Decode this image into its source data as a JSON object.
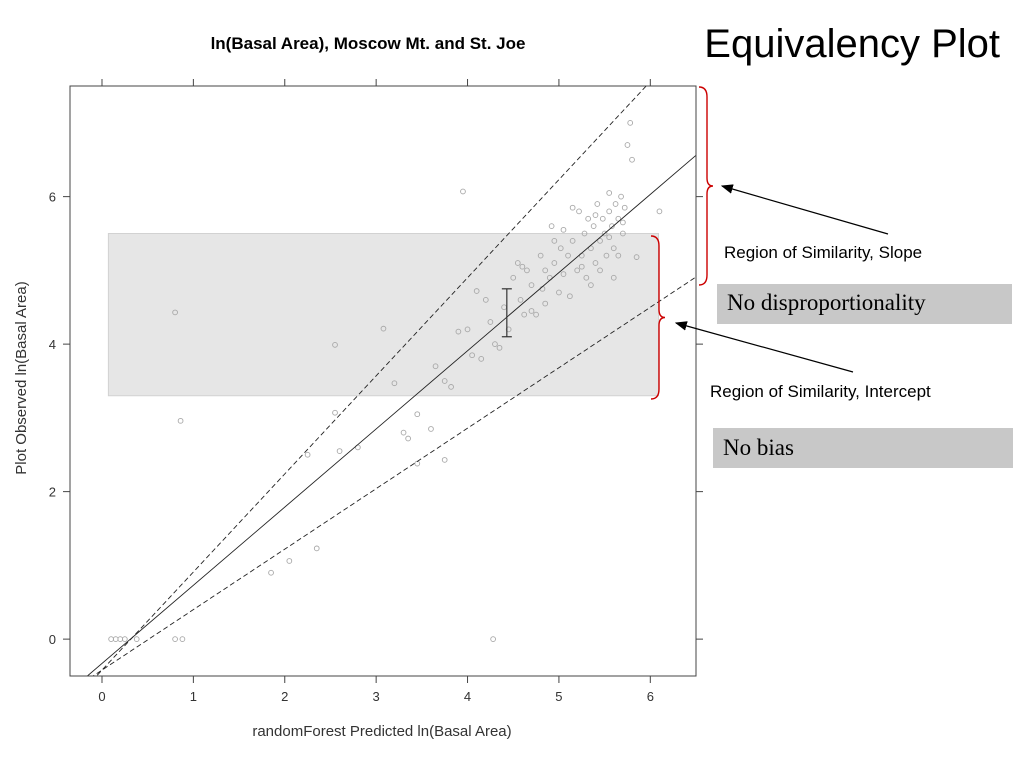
{
  "slide": {
    "title": "Equivalency Plot"
  },
  "annotations": {
    "slope_label": "Region of Similarity, Slope",
    "slope_result": "No disproportionality",
    "intercept_label": "Region of Similarity, Intercept",
    "intercept_result": "No bias",
    "brace_color": "#cc0000",
    "result_box_color": "#c8c8c8"
  },
  "chart_data": {
    "type": "scatter",
    "title": "ln(Basal Area), Moscow Mt. and St. Joe",
    "xlabel": "randomForest Predicted ln(Basal Area)",
    "ylabel": "Plot Observed ln(Basal Area)",
    "xlim": [
      -0.35,
      6.5
    ],
    "ylim": [
      -0.5,
      7.5
    ],
    "xticks": [
      0,
      1,
      2,
      3,
      4,
      5,
      6
    ],
    "yticks": [
      0,
      2,
      4,
      6
    ],
    "grid": false,
    "region_of_similarity": {
      "x": [
        0.07,
        6.09
      ],
      "y": [
        3.3,
        5.5
      ],
      "color": "#e6e6e6"
    },
    "error_bar": {
      "x": 4.43,
      "y_low": 4.1,
      "y_high": 4.75,
      "y_mid": 4.42
    },
    "lines": [
      {
        "name": "fit",
        "style": "solid",
        "intercept": -0.33,
        "slope": 1.06
      },
      {
        "name": "slope-upper",
        "style": "dashed",
        "intercept": -0.42,
        "slope": 1.33
      },
      {
        "name": "slope-lower",
        "style": "dashed",
        "intercept": -0.42,
        "slope": 0.82
      }
    ],
    "points": [
      [
        0.1,
        0
      ],
      [
        0.15,
        0
      ],
      [
        0.2,
        0
      ],
      [
        0.25,
        0
      ],
      [
        0.38,
        0
      ],
      [
        0.8,
        0
      ],
      [
        0.88,
        0
      ],
      [
        4.28,
        0
      ],
      [
        0.8,
        4.43
      ],
      [
        0.86,
        2.96
      ],
      [
        1.85,
        0.9
      ],
      [
        2.05,
        1.06
      ],
      [
        2.35,
        1.23
      ],
      [
        2.25,
        2.5
      ],
      [
        2.6,
        2.55
      ],
      [
        2.8,
        2.6
      ],
      [
        2.55,
        3.07
      ],
      [
        2.55,
        3.99
      ],
      [
        3.08,
        4.21
      ],
      [
        3.2,
        3.47
      ],
      [
        3.3,
        2.8
      ],
      [
        3.35,
        2.72
      ],
      [
        3.45,
        3.05
      ],
      [
        3.45,
        2.38
      ],
      [
        3.6,
        2.85
      ],
      [
        3.65,
        3.7
      ],
      [
        3.75,
        3.5
      ],
      [
        3.82,
        3.42
      ],
      [
        3.75,
        2.43
      ],
      [
        3.9,
        4.17
      ],
      [
        3.95,
        6.07
      ],
      [
        4.0,
        4.2
      ],
      [
        4.05,
        3.85
      ],
      [
        4.15,
        3.8
      ],
      [
        4.1,
        4.72
      ],
      [
        4.2,
        4.6
      ],
      [
        4.25,
        4.3
      ],
      [
        4.3,
        4.0
      ],
      [
        4.35,
        3.95
      ],
      [
        4.4,
        4.5
      ],
      [
        4.45,
        4.2
      ],
      [
        4.5,
        4.9
      ],
      [
        4.55,
        5.1
      ],
      [
        4.58,
        4.6
      ],
      [
        4.62,
        4.4
      ],
      [
        4.65,
        5.0
      ],
      [
        4.7,
        4.8
      ],
      [
        4.75,
        4.4
      ],
      [
        4.8,
        5.2
      ],
      [
        4.82,
        4.75
      ],
      [
        4.85,
        5.0
      ],
      [
        4.9,
        4.9
      ],
      [
        4.92,
        5.6
      ],
      [
        4.95,
        5.1
      ],
      [
        5.0,
        4.7
      ],
      [
        5.02,
        5.3
      ],
      [
        5.05,
        4.95
      ],
      [
        5.1,
        5.2
      ],
      [
        5.12,
        4.65
      ],
      [
        5.15,
        5.4
      ],
      [
        5.2,
        5.0
      ],
      [
        5.22,
        5.8
      ],
      [
        5.25,
        5.2
      ],
      [
        5.28,
        5.5
      ],
      [
        5.3,
        4.9
      ],
      [
        5.32,
        5.7
      ],
      [
        5.35,
        5.3
      ],
      [
        5.38,
        5.6
      ],
      [
        5.4,
        5.1
      ],
      [
        5.42,
        5.9
      ],
      [
        5.45,
        5.4
      ],
      [
        5.48,
        5.7
      ],
      [
        5.5,
        5.5
      ],
      [
        5.52,
        5.2
      ],
      [
        5.55,
        5.8
      ],
      [
        5.58,
        5.6
      ],
      [
        5.6,
        5.3
      ],
      [
        5.62,
        5.9
      ],
      [
        5.65,
        5.7
      ],
      [
        5.68,
        6.0
      ],
      [
        5.7,
        5.5
      ],
      [
        5.72,
        5.85
      ],
      [
        5.75,
        6.7
      ],
      [
        5.78,
        7.0
      ],
      [
        5.8,
        6.5
      ],
      [
        5.85,
        5.18
      ],
      [
        6.1,
        5.8
      ],
      [
        5.55,
        6.05
      ],
      [
        5.25,
        5.05
      ],
      [
        5.35,
        4.8
      ],
      [
        5.45,
        5.0
      ],
      [
        5.6,
        4.9
      ],
      [
        5.65,
        5.2
      ],
      [
        5.05,
        5.55
      ],
      [
        4.95,
        5.4
      ],
      [
        4.85,
        4.55
      ],
      [
        4.7,
        4.45
      ],
      [
        4.6,
        5.05
      ],
      [
        5.15,
        5.85
      ],
      [
        5.55,
        5.45
      ],
      [
        5.4,
        5.75
      ],
      [
        5.7,
        5.65
      ]
    ]
  }
}
